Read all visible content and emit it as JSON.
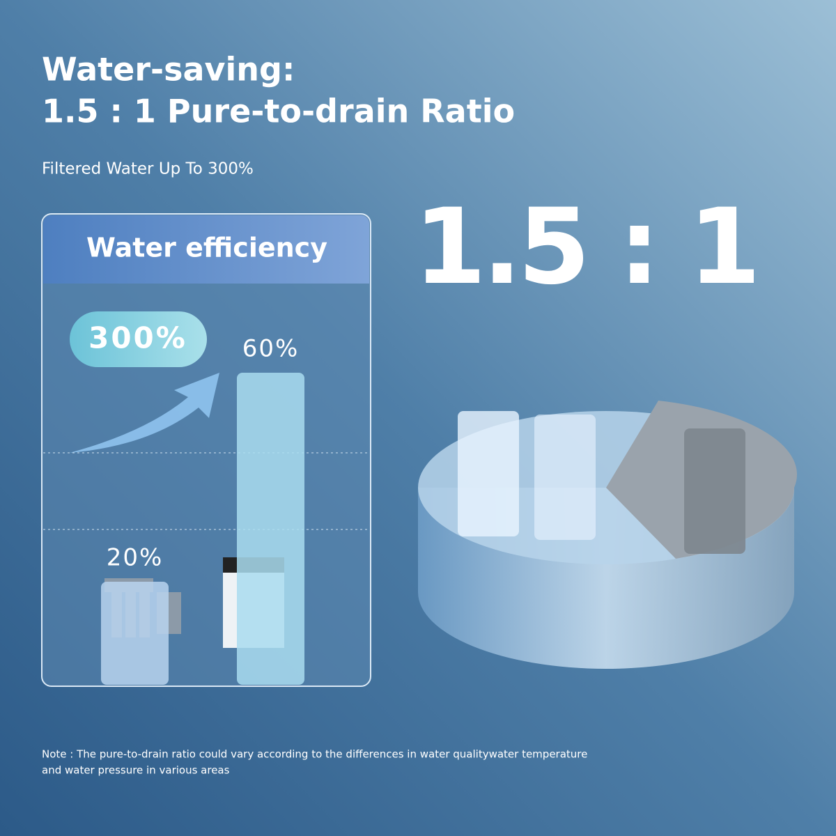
{
  "header": {
    "title_line1": "Water-saving:",
    "title_line2": "1.5 : 1  Pure-to-drain Ratio",
    "subtitle": "Filtered Water Up To 300%"
  },
  "ratio": "1.5 : 1",
  "chart_data": {
    "type": "bar",
    "title": "Water efficiency",
    "annotation": "300%",
    "categories": [
      null,
      null
    ],
    "values": [
      20,
      60
    ],
    "value_labels": [
      "20%",
      "60%"
    ],
    "colors": [
      "#b9d3ef",
      "#a9dcef"
    ]
  },
  "note": {
    "line1": "Note : The pure-to-drain ratio could vary according to the differences in water qualitywater temperature",
    "line2": "and water pressure in various areas"
  }
}
